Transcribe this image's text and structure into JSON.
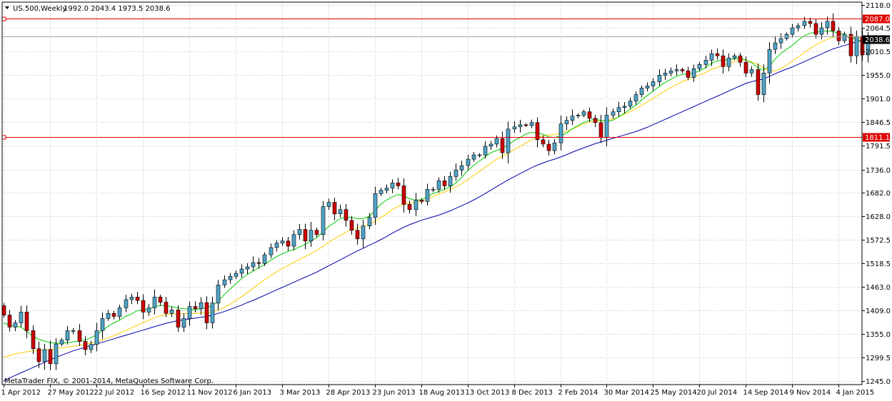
{
  "header": {
    "symbol_timeframe": "US.500,Weekly",
    "ohlc": "1992.0 2043.4 1973.5 2038.6"
  },
  "footer": {
    "copyright": "MetaTrader FIX, © 2001-2014, MetaQuotes Software Corp."
  },
  "colors": {
    "background": "#ffffff",
    "grid": "#c0c0c0",
    "frame": "#000000",
    "bull_body": "#4fa3c7",
    "bear_body": "#cc0000",
    "wick": "#000000",
    "ma_fast": "#00cc00",
    "ma_mid": "#ffcc00",
    "ma_slow": "#0000aa",
    "hline": "#e00000",
    "current_price_bg": "#000000"
  },
  "chart_data": {
    "type": "candlestick",
    "title": "US.500,Weekly",
    "ylim": [
      1245.0,
      2118.0
    ],
    "y_ticks": [
      "2118.0",
      "2064.5",
      "2010.5",
      "1955.0",
      "1901.0",
      "1846.5",
      "1791.5",
      "1736.0",
      "1682.0",
      "1628.0",
      "1572.5",
      "1518.5",
      "1463.0",
      "1409.0",
      "1355.0",
      "1299.5",
      "1245.0"
    ],
    "x_ticks": [
      {
        "label": "1 Apr 2012",
        "i": 0
      },
      {
        "label": "27 May 2012",
        "i": 8
      },
      {
        "label": "22 Jul 2012",
        "i": 16
      },
      {
        "label": "16 Sep 2012",
        "i": 24
      },
      {
        "label": "11 Nov 2012",
        "i": 32
      },
      {
        "label": "6 Jan 2013",
        "i": 40
      },
      {
        "label": "3 Mar 2013",
        "i": 48
      },
      {
        "label": "28 Apr 2013",
        "i": 56
      },
      {
        "label": "23 Jun 2013",
        "i": 64
      },
      {
        "label": "18 Aug 2013",
        "i": 72
      },
      {
        "label": "13 Oct 2013",
        "i": 80
      },
      {
        "label": "8 Dec 2013",
        "i": 88
      },
      {
        "label": "2 Feb 2014",
        "i": 96
      },
      {
        "label": "30 Mar 2014",
        "i": 104
      },
      {
        "label": "25 May 2014",
        "i": 112
      },
      {
        "label": "20 Jul 2014",
        "i": 120
      },
      {
        "label": "14 Sep 2014",
        "i": 128
      },
      {
        "label": "9 Nov 2014",
        "i": 136
      },
      {
        "label": "4 Jan 2015",
        "i": 144
      }
    ],
    "horizontal_lines": [
      {
        "value": 2087.0,
        "label": "2087.0"
      },
      {
        "value": 1811.1,
        "label": "1811.1"
      }
    ],
    "current_price": {
      "value": 2038.6,
      "label": "2038.6"
    },
    "current_price_line": 2045.0,
    "candle_closes": [
      1398,
      1370,
      1380,
      1405,
      1362,
      1320,
      1290,
      1318,
      1285,
      1331,
      1340,
      1362,
      1362,
      1337,
      1318,
      1330,
      1362,
      1390,
      1402,
      1395,
      1415,
      1434,
      1440,
      1432,
      1405,
      1415,
      1440,
      1428,
      1402,
      1410,
      1370,
      1390,
      1418,
      1413,
      1427,
      1380,
      1426,
      1468,
      1480,
      1488,
      1495,
      1505,
      1510,
      1520,
      1518,
      1538,
      1555,
      1565,
      1570,
      1558,
      1585,
      1597,
      1570,
      1595,
      1585,
      1650,
      1660,
      1633,
      1643,
      1618,
      1595,
      1575,
      1605,
      1625,
      1680,
      1688,
      1693,
      1705,
      1698,
      1655,
      1643,
      1665,
      1662,
      1690,
      1690,
      1710,
      1698,
      1720,
      1735,
      1745,
      1760,
      1770,
      1770,
      1790,
      1795,
      1808,
      1775,
      1830,
      1835,
      1840,
      1838,
      1845,
      1805,
      1795,
      1780,
      1798,
      1842,
      1850,
      1860,
      1862,
      1870,
      1855,
      1845,
      1810,
      1862,
      1870,
      1880,
      1883,
      1895,
      1910,
      1925,
      1930,
      1940,
      1955,
      1960,
      1965,
      1968,
      1965,
      1950,
      1970,
      1980,
      1990,
      2005,
      2000,
      1975,
      1995,
      2000,
      1985,
      1960,
      1968,
      1910,
      1960,
      2015,
      2030,
      2040,
      2050,
      2065,
      2070,
      2080,
      2075,
      2050,
      2065,
      2080,
      2058,
      2035,
      2050,
      2000,
      2045,
      2002,
      2040,
      2038
    ],
    "ma_fast": [
      1380,
      1375,
      1372,
      1370,
      1360,
      1350,
      1342,
      1338,
      1334,
      1333,
      1333,
      1334,
      1336,
      1338,
      1340,
      1345,
      1352,
      1362,
      1372,
      1380,
      1386,
      1395,
      1400,
      1408,
      1410,
      1412,
      1418,
      1420,
      1420,
      1418,
      1415,
      1413,
      1412,
      1410,
      1413,
      1415,
      1420,
      1430,
      1445,
      1458,
      1470,
      1482,
      1492,
      1500,
      1508,
      1515,
      1525,
      1533,
      1540,
      1546,
      1550,
      1556,
      1562,
      1570,
      1578,
      1590,
      1603,
      1612,
      1622,
      1625,
      1625,
      1622,
      1622,
      1627,
      1640,
      1655,
      1665,
      1672,
      1678,
      1675,
      1668,
      1665,
      1666,
      1672,
      1680,
      1685,
      1690,
      1696,
      1705,
      1718,
      1733,
      1745,
      1755,
      1765,
      1775,
      1780,
      1785,
      1793,
      1803,
      1810,
      1818,
      1822,
      1822,
      1818,
      1812,
      1810,
      1814,
      1820,
      1830,
      1838,
      1845,
      1850,
      1853,
      1850,
      1848,
      1850,
      1858,
      1866,
      1876,
      1885,
      1897,
      1908,
      1918,
      1928,
      1938,
      1945,
      1952,
      1957,
      1958,
      1960,
      1965,
      1972,
      1982,
      1988,
      1990,
      1990,
      1993,
      1995,
      1990,
      1984,
      1973,
      1967,
      1975,
      1992,
      2005,
      2015,
      2024,
      2036,
      2046,
      2052,
      2055,
      2056,
      2058,
      2056,
      2052,
      2050,
      2040,
      2040,
      2032,
      2030,
      2028
    ],
    "ma_mid": [
      1300,
      1304,
      1308,
      1311,
      1313,
      1315,
      1315,
      1317,
      1318,
      1320,
      1322,
      1324,
      1326,
      1328,
      1330,
      1333,
      1336,
      1340,
      1345,
      1350,
      1356,
      1362,
      1368,
      1374,
      1380,
      1386,
      1392,
      1396,
      1399,
      1401,
      1401,
      1401,
      1402,
      1402,
      1403,
      1403,
      1405,
      1410,
      1416,
      1423,
      1431,
      1440,
      1450,
      1460,
      1470,
      1480,
      1489,
      1498,
      1506,
      1513,
      1520,
      1527,
      1534,
      1541,
      1548,
      1557,
      1566,
      1575,
      1583,
      1590,
      1596,
      1600,
      1604,
      1609,
      1615,
      1624,
      1633,
      1643,
      1650,
      1656,
      1658,
      1660,
      1662,
      1667,
      1673,
      1679,
      1684,
      1690,
      1696,
      1703,
      1712,
      1722,
      1731,
      1741,
      1750,
      1760,
      1767,
      1774,
      1782,
      1789,
      1797,
      1805,
      1810,
      1814,
      1816,
      1817,
      1820,
      1824,
      1830,
      1835,
      1842,
      1846,
      1848,
      1849,
      1850,
      1853,
      1858,
      1864,
      1870,
      1877,
      1885,
      1893,
      1901,
      1910,
      1918,
      1926,
      1933,
      1940,
      1945,
      1950,
      1956,
      1961,
      1968,
      1973,
      1978,
      1982,
      1986,
      1990,
      1990,
      1986,
      1980,
      1972,
      1965,
      1965,
      1970,
      1978,
      1988,
      1997,
      2007,
      2016,
      2025,
      2032,
      2038,
      2043,
      2045,
      2045,
      2043,
      2042,
      2040,
      2040,
      2040
    ],
    "ma_slow": [
      1245,
      1252,
      1258,
      1264,
      1270,
      1276,
      1282,
      1288,
      1294,
      1300,
      1305,
      1310,
      1315,
      1319,
      1323,
      1327,
      1331,
      1335,
      1339,
      1343,
      1347,
      1351,
      1355,
      1359,
      1363,
      1367,
      1371,
      1375,
      1379,
      1382,
      1385,
      1387,
      1389,
      1391,
      1393,
      1395,
      1398,
      1402,
      1406,
      1411,
      1416,
      1421,
      1427,
      1432,
      1438,
      1444,
      1450,
      1456,
      1462,
      1468,
      1474,
      1480,
      1486,
      1492,
      1498,
      1505,
      1512,
      1519,
      1526,
      1533,
      1540,
      1547,
      1553,
      1560,
      1566,
      1573,
      1580,
      1588,
      1595,
      1602,
      1608,
      1613,
      1618,
      1622,
      1626,
      1630,
      1635,
      1640,
      1646,
      1652,
      1658,
      1665,
      1672,
      1680,
      1688,
      1696,
      1704,
      1712,
      1719,
      1726,
      1733,
      1740,
      1746,
      1751,
      1756,
      1760,
      1765,
      1770,
      1776,
      1781,
      1786,
      1791,
      1796,
      1800,
      1804,
      1808,
      1812,
      1816,
      1820,
      1824,
      1829,
      1834,
      1840,
      1846,
      1852,
      1858,
      1864,
      1870,
      1876,
      1882,
      1888,
      1894,
      1900,
      1906,
      1912,
      1918,
      1924,
      1930,
      1936,
      1940,
      1943,
      1946,
      1952,
      1958,
      1964,
      1969,
      1974,
      1980,
      1986,
      1992,
      1998,
      2004,
      2010,
      2016,
      2020,
      2024,
      2028,
      2032,
      2036,
      2040,
      2045
    ]
  }
}
